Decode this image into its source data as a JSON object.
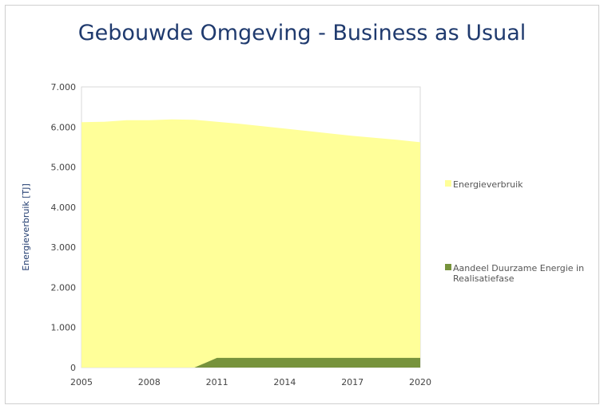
{
  "chart_data": {
    "type": "area",
    "title": "Gebouwde Omgeving - Business as Usual",
    "ylabel": "Energieverbruik [TJ]",
    "xlabel": "",
    "ylim": [
      0,
      7000
    ],
    "x": [
      2005,
      2006,
      2007,
      2008,
      2009,
      2010,
      2011,
      2012,
      2013,
      2014,
      2015,
      2016,
      2017,
      2018,
      2019,
      2020
    ],
    "x_ticks": [
      "2005",
      "2008",
      "2011",
      "2014",
      "2017",
      "2020"
    ],
    "y_ticks": [
      "0",
      "1.000",
      "2.000",
      "3.000",
      "4.000",
      "5.000",
      "6.000",
      "7.000"
    ],
    "series": [
      {
        "name": "Energieverbruik",
        "color": "#ffff99",
        "values": [
          6120,
          6130,
          6170,
          6170,
          6190,
          6180,
          6130,
          6080,
          6020,
          5960,
          5900,
          5840,
          5780,
          5730,
          5680,
          5620
        ]
      },
      {
        "name": "Aandeel Duurzame Energie in Realisatiefase",
        "color": "#77933c",
        "values": [
          0,
          0,
          0,
          0,
          0,
          0,
          240,
          240,
          240,
          240,
          240,
          240,
          240,
          240,
          240,
          240
        ]
      }
    ],
    "legend": "right",
    "grid": false
  }
}
